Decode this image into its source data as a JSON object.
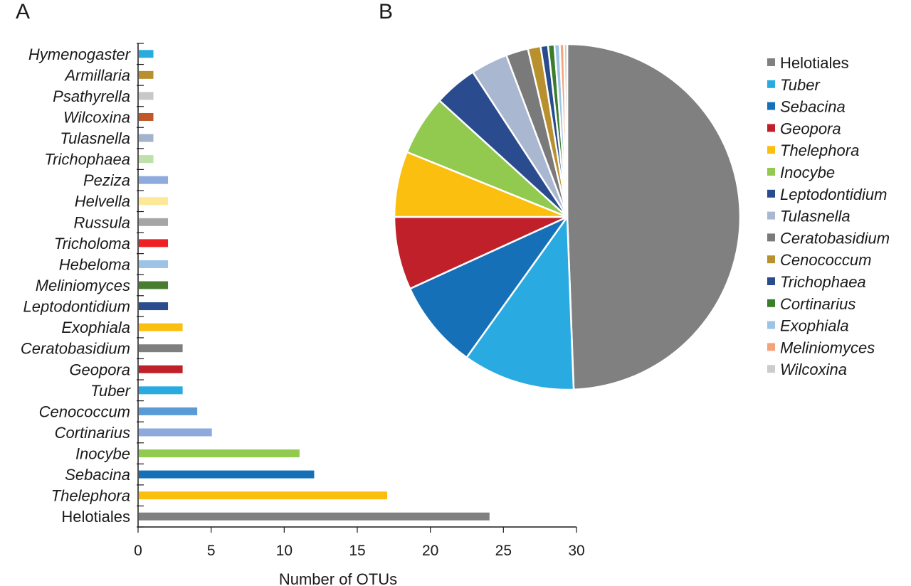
{
  "panel_a_letter": "A",
  "panel_b_letter": "B",
  "chart_data": [
    {
      "type": "bar",
      "orientation": "horizontal",
      "categories": [
        "Hymenogaster",
        "Armillaria",
        "Psathyrella",
        "Wilcoxina",
        "Tulasnella",
        "Trichophaea",
        "Peziza",
        "Helvella",
        "Russula",
        "Tricholoma",
        "Hebeloma",
        "Meliniomyces",
        "Leptodontidium",
        "Exophiala",
        "Ceratobasidium",
        "Geopora",
        "Tuber",
        "Cenococcum",
        "Cortinarius",
        "Inocybe",
        "Sebacina",
        "Thelephora",
        "Helotiales"
      ],
      "values": [
        1,
        1,
        1,
        1,
        1,
        1,
        2,
        2,
        2,
        2,
        2,
        2,
        2,
        3,
        3,
        3,
        3,
        4,
        5,
        11,
        12,
        17,
        24
      ],
      "colors": [
        "#29aae1",
        "#b8902e",
        "#c8c8c8",
        "#c0582a",
        "#a3b3cc",
        "#bfe0a8",
        "#8faadc",
        "#fde898",
        "#a5a5a5",
        "#ee2024",
        "#9dc3e6",
        "#4a7c2f",
        "#2a4b8d",
        "#fbbf10",
        "#7f7f7f",
        "#c0202a",
        "#29aae1",
        "#5b9bd5",
        "#8ea9db",
        "#92c94f",
        "#1670b8",
        "#fbbf10",
        "#808080"
      ],
      "xlabel": "Number of OTUs",
      "xlim": [
        0,
        30
      ],
      "xticks": [
        "0",
        "5",
        "10",
        "15",
        "20",
        "25",
        "30"
      ]
    },
    {
      "type": "pie",
      "labels": [
        "Helotiales",
        "Tuber",
        "Sebacina",
        "Geopora",
        "Thelephora",
        "Inocybe",
        "Leptodontidium",
        "Tulasnella",
        "Ceratobasidium",
        "Cenococcum",
        "Trichophaea",
        "Cortinarius",
        "Exophiala",
        "Meliniomyces",
        "Wilcoxina"
      ],
      "values": [
        50.0,
        10.6,
        8.4,
        6.9,
        6.2,
        5.7,
        4.1,
        3.5,
        2.1,
        1.2,
        0.7,
        0.6,
        0.5,
        0.4,
        0.3
      ],
      "colors": [
        "#808080",
        "#29aae1",
        "#1670b8",
        "#c0202a",
        "#fbbf10",
        "#92c94f",
        "#2a4b8d",
        "#a9b8d0",
        "#7a7a7a",
        "#b8902e",
        "#2a4b8d",
        "#3a7d2c",
        "#9dc3e6",
        "#f4a47a",
        "#cccccc"
      ],
      "legend_position": "right"
    }
  ]
}
